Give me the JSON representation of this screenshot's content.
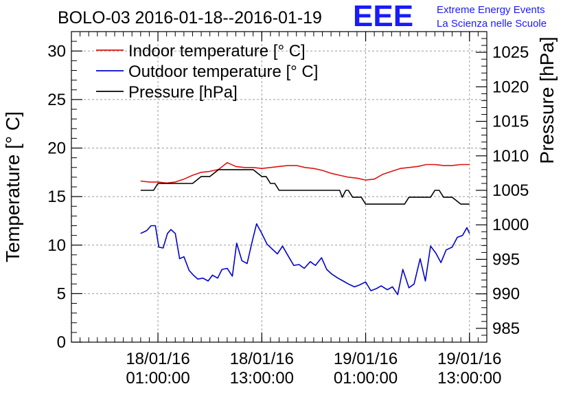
{
  "header": {
    "title": "BOLO-03 2016-01-18--2016-01-19"
  },
  "logo": {
    "mark": "EEE",
    "line1": "Extreme Energy Events",
    "line2": "La Scienza nelle Scuole",
    "color": "#1a1aff"
  },
  "chart_data": {
    "type": "line",
    "xlabel": "",
    "ylabel": "Temperature [° C]",
    "y2label": "Pressure [hPa]",
    "xlim": [
      -10,
      38
    ],
    "ylim": [
      0,
      32
    ],
    "y2lim": [
      983,
      1028
    ],
    "x_ticks": [
      {
        "x": 0,
        "line1": "18/01/16",
        "line2": "01:00:00"
      },
      {
        "x": 12,
        "line1": "18/01/16",
        "line2": "13:00:00"
      },
      {
        "x": 24,
        "line1": "19/01/16",
        "line2": "01:00:00"
      },
      {
        "x": 36,
        "line1": "19/01/16",
        "line2": "13:00:00"
      }
    ],
    "y_ticks": [
      0,
      5,
      10,
      15,
      20,
      25,
      30
    ],
    "y2_ticks": [
      985,
      990,
      995,
      1000,
      1005,
      1010,
      1015,
      1020,
      1025
    ],
    "grid": true,
    "legend_position": "top-left",
    "series": [
      {
        "name": "Indoor temperature [° C]",
        "axis": "left",
        "color": "#e01010",
        "x": [
          -2,
          -1,
          0,
          1,
          2,
          3,
          4,
          5,
          6,
          7,
          8,
          9,
          10,
          11,
          12,
          13,
          14,
          15,
          16,
          17,
          18,
          19,
          20,
          21,
          22,
          23,
          24,
          25,
          26,
          27,
          28,
          29,
          30,
          31,
          32,
          33,
          34,
          35,
          36
        ],
        "values": [
          16.6,
          16.5,
          16.5,
          16.4,
          16.5,
          16.8,
          17.2,
          17.5,
          17.6,
          17.8,
          18.5,
          18.1,
          18.0,
          18.0,
          17.9,
          18.0,
          18.1,
          18.2,
          18.2,
          18.0,
          17.9,
          17.7,
          17.4,
          17.2,
          17.0,
          16.9,
          16.7,
          16.8,
          17.3,
          17.6,
          17.9,
          18.0,
          18.1,
          18.3,
          18.3,
          18.2,
          18.2,
          18.3,
          18.3
        ]
      },
      {
        "name": "Outdoor temperature [° C]",
        "axis": "left",
        "color": "#0000cc",
        "x": [
          -2,
          -1.3,
          -0.8,
          -0.3,
          0.1,
          0.6,
          1.1,
          1.5,
          2.0,
          2.5,
          3.0,
          3.6,
          4.1,
          4.6,
          5.2,
          5.8,
          6.3,
          6.9,
          7.4,
          8.0,
          8.6,
          9.1,
          9.7,
          10.3,
          10.9,
          11.4,
          12.0,
          12.6,
          13.2,
          13.8,
          14.4,
          15.1,
          15.7,
          16.3,
          16.9,
          17.6,
          18.2,
          18.9,
          19.5,
          20.1,
          20.8,
          21.4,
          22.0,
          22.7,
          23.3,
          24.0,
          24.6,
          25.2,
          25.8,
          26.5,
          27.1,
          27.7,
          28.3,
          29.0,
          29.6,
          30.3,
          30.9,
          31.5,
          32.1,
          32.7,
          33.3,
          34.0,
          34.6,
          35.2,
          35.7,
          36.0
        ],
        "values": [
          11.2,
          11.5,
          12.0,
          12.0,
          9.8,
          9.7,
          11.2,
          11.6,
          11.2,
          8.6,
          8.8,
          7.4,
          6.9,
          6.5,
          6.6,
          6.3,
          6.9,
          6.6,
          7.5,
          7.6,
          6.8,
          10.2,
          8.4,
          8.1,
          10.4,
          12.2,
          11.2,
          10.1,
          9.6,
          9.1,
          9.9,
          8.8,
          7.9,
          8.0,
          7.6,
          8.3,
          7.9,
          8.7,
          7.5,
          7.0,
          6.6,
          6.3,
          6.0,
          5.7,
          5.9,
          6.2,
          5.3,
          5.5,
          5.8,
          5.4,
          5.7,
          4.9,
          7.5,
          5.6,
          6.0,
          8.6,
          6.3,
          9.9,
          9.2,
          8.2,
          9.5,
          9.8,
          10.8,
          11.0,
          11.8,
          11.2
        ]
      },
      {
        "name": "Pressure [hPa]",
        "axis": "right",
        "color": "#000000",
        "x": [
          -2,
          -0.5,
          0,
          1,
          2,
          3,
          4,
          5,
          5.5,
          6,
          7,
          8,
          9,
          10,
          11,
          12,
          12.5,
          13,
          13.5,
          14,
          15,
          16,
          17,
          18,
          19,
          20,
          21,
          21.3,
          21.7,
          22,
          22.5,
          23,
          23.5,
          24,
          25,
          26,
          27,
          28,
          28.5,
          29,
          30,
          31,
          31.5,
          32,
          32.5,
          33,
          34,
          35,
          36
        ],
        "values": [
          1005,
          1005,
          1006,
          1006,
          1006,
          1006,
          1006,
          1007,
          1007,
          1007,
          1008,
          1008,
          1008,
          1008,
          1008,
          1007,
          1007,
          1006,
          1006,
          1005,
          1005,
          1005,
          1005,
          1005,
          1005,
          1005,
          1005,
          1004,
          1005,
          1005,
          1004,
          1004,
          1004,
          1003,
          1003,
          1003,
          1003,
          1003,
          1003,
          1004,
          1004,
          1004,
          1004,
          1005,
          1005,
          1004,
          1004,
          1003,
          1003
        ]
      }
    ]
  }
}
